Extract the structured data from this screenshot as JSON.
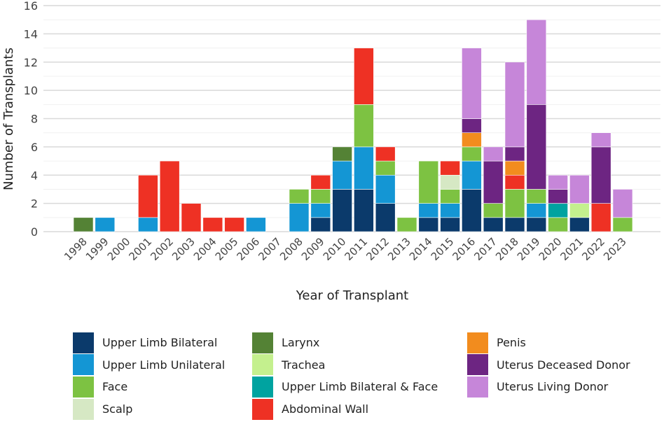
{
  "chart_data": {
    "type": "bar",
    "stacked": true,
    "xlabel": "Year of Transplant",
    "ylabel": "Number of Transplants",
    "ylim": [
      0,
      16
    ],
    "yticks": [
      0,
      2,
      4,
      6,
      8,
      10,
      12,
      14,
      16
    ],
    "grid": true,
    "legend_position": "bottom",
    "categories": [
      "1998",
      "1999",
      "2000",
      "2001",
      "2002",
      "2003",
      "2004",
      "2005",
      "2006",
      "2007",
      "2008",
      "2009",
      "2010",
      "2011",
      "2012",
      "2013",
      "2014",
      "2015",
      "2016",
      "2017",
      "2018",
      "2019",
      "2020",
      "2021",
      "2022",
      "2023"
    ],
    "series": [
      {
        "name": "Upper Limb Bilateral",
        "color": "#0b3a6b",
        "values": [
          0,
          0,
          0,
          0,
          0,
          0,
          0,
          0,
          0,
          0,
          0,
          1,
          3,
          3,
          2,
          0,
          1,
          1,
          3,
          1,
          1,
          1,
          0,
          1,
          0,
          0
        ]
      },
      {
        "name": "Upper Limb Unilateral",
        "color": "#1496d4",
        "values": [
          0,
          1,
          0,
          1,
          0,
          0,
          0,
          0,
          1,
          0,
          2,
          1,
          2,
          3,
          2,
          0,
          1,
          1,
          2,
          0,
          0,
          1,
          0,
          0,
          0,
          0
        ]
      },
      {
        "name": "Face",
        "color": "#7dc242",
        "values": [
          0,
          0,
          0,
          0,
          0,
          0,
          0,
          0,
          0,
          0,
          1,
          1,
          0,
          3,
          1,
          1,
          3,
          1,
          1,
          1,
          2,
          1,
          1,
          0,
          0,
          1
        ]
      },
      {
        "name": "Scalp",
        "color": "#d6e8c4",
        "values": [
          0,
          0,
          0,
          0,
          0,
          0,
          0,
          0,
          0,
          0,
          0,
          0,
          0,
          0,
          0,
          0,
          0,
          1,
          0,
          0,
          0,
          0,
          0,
          0,
          0,
          0
        ]
      },
      {
        "name": "Larynx",
        "color": "#548235",
        "values": [
          1,
          0,
          0,
          0,
          0,
          0,
          0,
          0,
          0,
          0,
          0,
          0,
          1,
          0,
          0,
          0,
          0,
          0,
          0,
          0,
          0,
          0,
          0,
          0,
          0,
          0
        ]
      },
      {
        "name": "Trachea",
        "color": "#c4f08e",
        "values": [
          0,
          0,
          0,
          0,
          0,
          0,
          0,
          0,
          0,
          0,
          0,
          0,
          0,
          0,
          0,
          0,
          0,
          0,
          0,
          0,
          0,
          0,
          0,
          1,
          0,
          0
        ]
      },
      {
        "name": "Upper Limb Bilateral & Face",
        "color": "#00a3a0",
        "values": [
          0,
          0,
          0,
          0,
          0,
          0,
          0,
          0,
          0,
          0,
          0,
          0,
          0,
          0,
          0,
          0,
          0,
          0,
          0,
          0,
          0,
          0,
          1,
          0,
          0,
          0
        ]
      },
      {
        "name": "Abdominal Wall",
        "color": "#ee3124",
        "values": [
          0,
          0,
          0,
          3,
          5,
          2,
          1,
          1,
          0,
          0,
          0,
          1,
          0,
          4,
          1,
          0,
          0,
          1,
          0,
          0,
          1,
          0,
          0,
          0,
          2,
          0
        ]
      },
      {
        "name": "Penis",
        "color": "#f28c1e",
        "values": [
          0,
          0,
          0,
          0,
          0,
          0,
          0,
          0,
          0,
          0,
          0,
          0,
          0,
          0,
          0,
          0,
          0,
          0,
          1,
          0,
          1,
          0,
          0,
          0,
          0,
          0
        ]
      },
      {
        "name": "Uterus Deceased Donor",
        "color": "#6d2582",
        "values": [
          0,
          0,
          0,
          0,
          0,
          0,
          0,
          0,
          0,
          0,
          0,
          0,
          0,
          0,
          0,
          0,
          0,
          0,
          1,
          3,
          1,
          6,
          1,
          0,
          4,
          0
        ]
      },
      {
        "name": "Uterus Living Donor",
        "color": "#c686d9",
        "values": [
          0,
          0,
          0,
          0,
          0,
          0,
          0,
          0,
          0,
          0,
          0,
          0,
          0,
          0,
          0,
          0,
          0,
          0,
          5,
          1,
          6,
          6,
          1,
          2,
          1,
          2
        ]
      }
    ]
  }
}
